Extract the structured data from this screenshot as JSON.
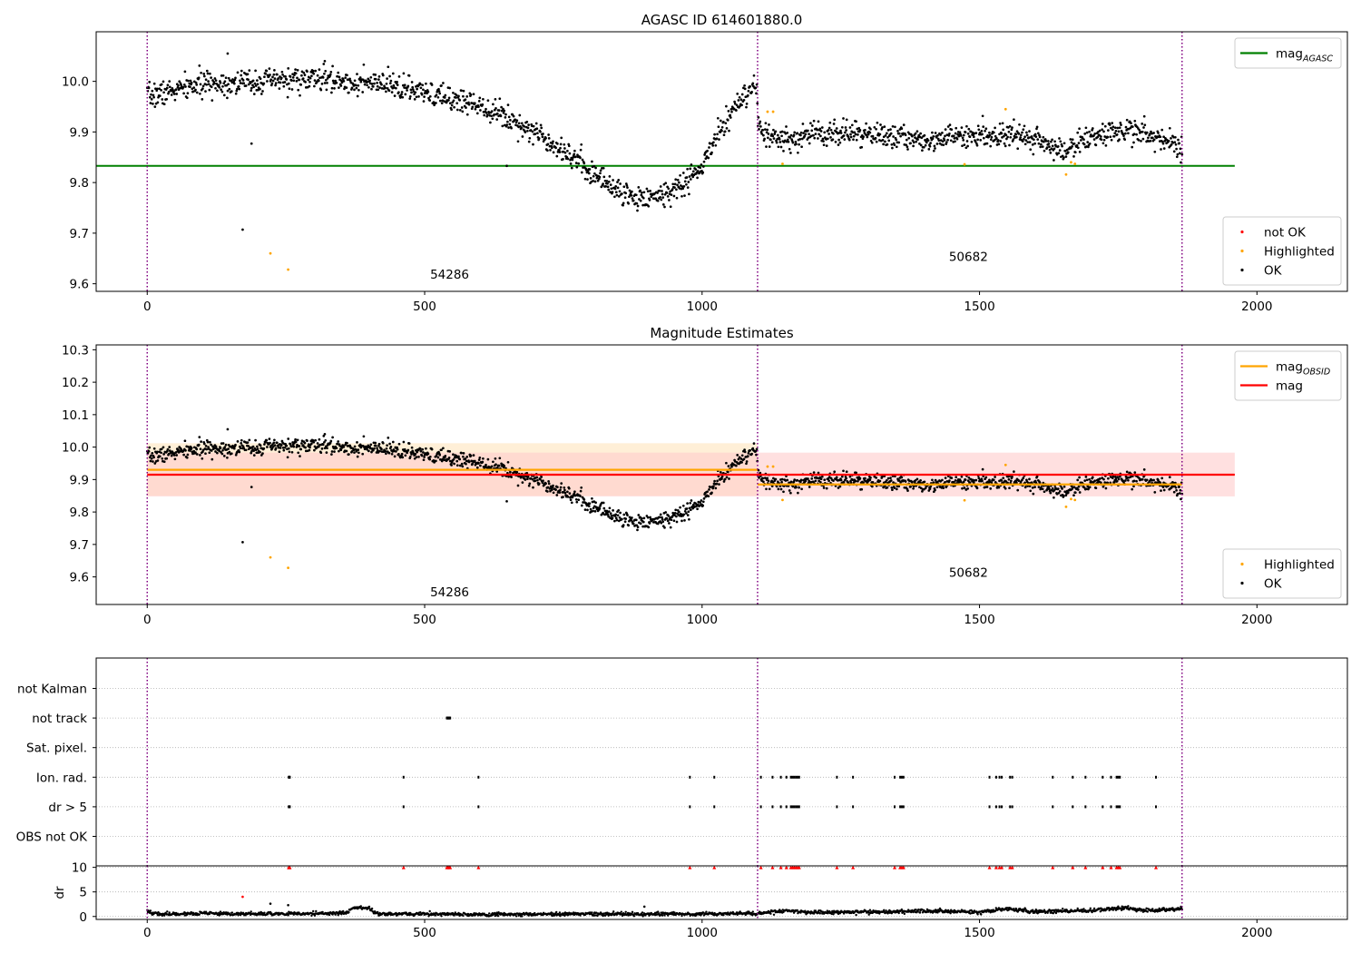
{
  "figure": {
    "title": "AGASC ID 614601880.0",
    "background": "#ffffff"
  },
  "colors": {
    "ok": "#000000",
    "highlighted": "#ffa500",
    "not_ok": "#ff0000",
    "agasc_line": "#008000",
    "obsid_mag": "#ffa500",
    "mag_line": "#ff0000",
    "obsid_vline": "#800080",
    "mag_band": "#ffcccc",
    "obsid_band": "#ffe4bc"
  },
  "chart_data": [
    {
      "type": "scatter",
      "title": "AGASC ID 614601880.0",
      "xlabel": "",
      "ylabel": "",
      "xlim": [
        -92,
        2163
      ],
      "ylim": [
        9.585,
        10.098
      ],
      "xticks": [
        0,
        500,
        1000,
        1500,
        2000
      ],
      "yticks": [
        9.6,
        9.7,
        9.8,
        9.9,
        10.0
      ],
      "grid": false,
      "hlines": [
        {
          "name": "mag",
          "sub": "AGASC",
          "y": 9.833,
          "x_range": [
            -92,
            1960
          ],
          "color": "#008000"
        }
      ],
      "obsid_boundaries": [
        0,
        1100,
        1865
      ],
      "obsid_labels": [
        {
          "text": "54286",
          "x": 545,
          "y": 9.61
        },
        {
          "text": "50682",
          "x": 1480,
          "y": 9.645
        }
      ],
      "legends": [
        {
          "position": "top-right",
          "entries": [
            {
              "kind": "line",
              "label": "mag",
              "sub": "AGASC",
              "color": "#008000"
            }
          ]
        },
        {
          "position": "bottom-right",
          "entries": [
            {
              "kind": "dot",
              "label": "not OK",
              "color": "#ff0000"
            },
            {
              "kind": "dot",
              "label": "Highlighted",
              "color": "#ffa500"
            },
            {
              "kind": "dot",
              "label": "OK",
              "color": "#000000"
            }
          ]
        }
      ],
      "series": [
        {
          "name": "OK",
          "model": "light_curve",
          "color": "#000000",
          "x_range": [
            0,
            1865
          ],
          "count": 1865,
          "scatter": 0.012,
          "knots": [
            [
              0,
              9.97
            ],
            [
              100,
              9.995
            ],
            [
              200,
              10.0
            ],
            [
              300,
              10.005
            ],
            [
              400,
              9.995
            ],
            [
              450,
              9.99
            ],
            [
              500,
              9.975
            ],
            [
              600,
              9.955
            ],
            [
              700,
              9.9
            ],
            [
              770,
              9.85
            ],
            [
              800,
              9.82
            ],
            [
              870,
              9.77
            ],
            [
              930,
              9.775
            ],
            [
              970,
              9.8
            ],
            [
              1000,
              9.83
            ],
            [
              1030,
              9.9
            ],
            [
              1060,
              9.95
            ],
            [
              1099,
              9.99
            ],
            [
              1100,
              9.91
            ],
            [
              1120,
              9.89
            ],
            [
              1160,
              9.88
            ],
            [
              1200,
              9.9
            ],
            [
              1300,
              9.895
            ],
            [
              1400,
              9.885
            ],
            [
              1500,
              9.895
            ],
            [
              1550,
              9.895
            ],
            [
              1600,
              9.89
            ],
            [
              1650,
              9.86
            ],
            [
              1700,
              9.89
            ],
            [
              1780,
              9.905
            ],
            [
              1865,
              9.87
            ]
          ],
          "outliers": [
            [
              145,
              10.055
            ],
            [
              188,
              9.877
            ],
            [
              172,
              9.707
            ],
            [
              320,
              10.04
            ],
            [
              648,
              9.833
            ]
          ]
        },
        {
          "name": "Highlighted",
          "model": "points",
          "color": "#ffa500",
          "points": [
            [
              222,
              9.66
            ],
            [
              254,
              9.628
            ],
            [
              1118,
              9.94
            ],
            [
              1128,
              9.94
            ],
            [
              1145,
              9.837
            ],
            [
              1473,
              9.836
            ],
            [
              1547,
              9.945
            ],
            [
              1656,
              9.816
            ],
            [
              1665,
              9.84
            ],
            [
              1672,
              9.837
            ]
          ]
        }
      ]
    },
    {
      "type": "scatter",
      "title": "Magnitude Estimates",
      "xlabel": "",
      "ylabel": "",
      "xlim": [
        -92,
        2163
      ],
      "ylim": [
        9.515,
        10.315
      ],
      "xticks": [
        0,
        500,
        1000,
        1500,
        2000
      ],
      "yticks": [
        9.6,
        9.7,
        9.8,
        9.9,
        10.0,
        10.1,
        10.2,
        10.3
      ],
      "grid": false,
      "hlines": [
        {
          "name": "mag",
          "sub": "OBSID",
          "y": 9.93,
          "x_range": [
            0,
            1100
          ],
          "color": "#ffa500"
        },
        {
          "name": "mag",
          "sub": "OBSID",
          "y": 9.885,
          "x_range": [
            1100,
            1865
          ],
          "color": "#ffa500"
        },
        {
          "name": "mag",
          "sub": "",
          "y": 9.915,
          "x_range": [
            0,
            1960
          ],
          "color": "#ff0000"
        }
      ],
      "bands": [
        {
          "x_range": [
            0,
            1100
          ],
          "y_range": [
            9.85,
            10.012
          ],
          "color": "#ffe4bc"
        },
        {
          "x_range": [
            0,
            1960
          ],
          "y_range": [
            9.848,
            9.983
          ],
          "color": "#ffcccc"
        }
      ],
      "obsid_boundaries": [
        0,
        1100,
        1865
      ],
      "obsid_labels": [
        {
          "text": "54286",
          "x": 545,
          "y": 9.54
        },
        {
          "text": "50682",
          "x": 1480,
          "y": 9.6
        }
      ],
      "legends": [
        {
          "position": "top-right",
          "entries": [
            {
              "kind": "line",
              "label": "mag",
              "sub": "OBSID",
              "color": "#ffa500"
            },
            {
              "kind": "line",
              "label": "mag",
              "sub": "",
              "color": "#ff0000"
            }
          ]
        },
        {
          "position": "bottom-right",
          "entries": [
            {
              "kind": "dot",
              "label": "Highlighted",
              "color": "#ffa500"
            },
            {
              "kind": "dot",
              "label": "OK",
              "color": "#000000"
            }
          ]
        }
      ],
      "series": [
        {
          "name": "OK",
          "model": "light_curve",
          "color": "#000000",
          "x_range": [
            0,
            1865
          ],
          "count": 1865,
          "scatter": 0.012,
          "knots": [
            [
              0,
              9.97
            ],
            [
              100,
              9.995
            ],
            [
              200,
              10.0
            ],
            [
              300,
              10.005
            ],
            [
              400,
              9.995
            ],
            [
              450,
              9.99
            ],
            [
              500,
              9.975
            ],
            [
              600,
              9.955
            ],
            [
              700,
              9.9
            ],
            [
              770,
              9.85
            ],
            [
              800,
              9.82
            ],
            [
              870,
              9.77
            ],
            [
              930,
              9.775
            ],
            [
              970,
              9.8
            ],
            [
              1000,
              9.83
            ],
            [
              1030,
              9.9
            ],
            [
              1060,
              9.95
            ],
            [
              1099,
              9.99
            ],
            [
              1100,
              9.91
            ],
            [
              1120,
              9.89
            ],
            [
              1160,
              9.88
            ],
            [
              1200,
              9.9
            ],
            [
              1300,
              9.895
            ],
            [
              1400,
              9.885
            ],
            [
              1500,
              9.895
            ],
            [
              1550,
              9.895
            ],
            [
              1600,
              9.89
            ],
            [
              1650,
              9.86
            ],
            [
              1700,
              9.89
            ],
            [
              1780,
              9.905
            ],
            [
              1865,
              9.87
            ]
          ],
          "outliers": [
            [
              145,
              10.055
            ],
            [
              188,
              9.877
            ],
            [
              172,
              9.707
            ],
            [
              320,
              10.04
            ],
            [
              648,
              9.833
            ]
          ]
        },
        {
          "name": "Highlighted",
          "model": "points",
          "color": "#ffa500",
          "points": [
            [
              222,
              9.66
            ],
            [
              254,
              9.628
            ],
            [
              1118,
              9.94
            ],
            [
              1128,
              9.94
            ],
            [
              1145,
              9.837
            ],
            [
              1473,
              9.836
            ],
            [
              1547,
              9.945
            ],
            [
              1656,
              9.816
            ],
            [
              1665,
              9.84
            ],
            [
              1672,
              9.837
            ]
          ]
        }
      ]
    },
    {
      "type": "scatter",
      "title": "",
      "xlabel": "",
      "ylabel": "",
      "xlim": [
        -92,
        2163
      ],
      "categories": [
        "not Kalman",
        "not track",
        "Sat. pixel.",
        "Ion. rad.",
        "dr > 5",
        "OBS not OK"
      ],
      "grid": true,
      "obsid_boundaries": [
        0,
        1100,
        1865
      ],
      "flags": {
        "not track": [
          540,
          541,
          542,
          543,
          544,
          545,
          546
        ],
        "Ion. rad.": [
          255,
          256,
          257,
          462,
          597,
          978,
          1022,
          1106,
          1127,
          1142,
          1152,
          1160,
          1163,
          1166,
          1169,
          1172,
          1175,
          1243,
          1272,
          1347,
          1357,
          1360,
          1363,
          1518,
          1530,
          1536,
          1540,
          1555,
          1559,
          1632,
          1668,
          1691,
          1722,
          1737,
          1747,
          1750,
          1753,
          1818
        ],
        "dr > 5": [
          255,
          256,
          257,
          462,
          597,
          978,
          1022,
          1106,
          1127,
          1142,
          1152,
          1160,
          1163,
          1166,
          1169,
          1172,
          1175,
          1243,
          1272,
          1347,
          1357,
          1360,
          1363,
          1518,
          1530,
          1536,
          1540,
          1555,
          1559,
          1632,
          1668,
          1691,
          1722,
          1737,
          1747,
          1750,
          1753,
          1818
        ]
      }
    },
    {
      "type": "scatter",
      "title": "",
      "xlabel": "",
      "ylabel": "dr",
      "xlim": [
        -92,
        2163
      ],
      "ylim": [
        -0.6,
        10.3
      ],
      "yticks": [
        0,
        5,
        10
      ],
      "grid": true,
      "obsid_boundaries": [
        0,
        1100,
        1865
      ],
      "series": [
        {
          "name": "dr",
          "model": "dr_trace",
          "color": "#000000",
          "x_range": [
            0,
            1865
          ],
          "count": 1865,
          "knots": [
            [
              0,
              1.0
            ],
            [
              20,
              0.5
            ],
            [
              100,
              0.6
            ],
            [
              200,
              0.5
            ],
            [
              300,
              0.6
            ],
            [
              360,
              0.7
            ],
            [
              370,
              1.7
            ],
            [
              400,
              1.8
            ],
            [
              410,
              0.6
            ],
            [
              600,
              0.4
            ],
            [
              800,
              0.5
            ],
            [
              1000,
              0.5
            ],
            [
              1100,
              0.6
            ],
            [
              1150,
              1.2
            ],
            [
              1200,
              0.8
            ],
            [
              1300,
              0.9
            ],
            [
              1400,
              1.1
            ],
            [
              1500,
              0.9
            ],
            [
              1550,
              1.5
            ],
            [
              1600,
              1.0
            ],
            [
              1700,
              1.2
            ],
            [
              1760,
              1.8
            ],
            [
              1800,
              1.2
            ],
            [
              1865,
              1.6
            ]
          ],
          "outliers": [
            [
              172,
              4.0
            ],
            [
              222,
              2.6
            ],
            [
              254,
              2.3
            ],
            [
              896,
              2.0
            ]
          ]
        },
        {
          "name": "dr > 5",
          "model": "capped",
          "color": "#ff0000",
          "marker": "triangle",
          "y": 10,
          "x": [
            255,
            256,
            257,
            462,
            540,
            542,
            544,
            546,
            597,
            978,
            1022,
            1106,
            1127,
            1142,
            1152,
            1160,
            1163,
            1166,
            1169,
            1172,
            1175,
            1243,
            1272,
            1347,
            1357,
            1360,
            1363,
            1518,
            1530,
            1536,
            1540,
            1555,
            1559,
            1632,
            1668,
            1691,
            1722,
            1737,
            1747,
            1750,
            1753,
            1818
          ]
        }
      ]
    }
  ]
}
